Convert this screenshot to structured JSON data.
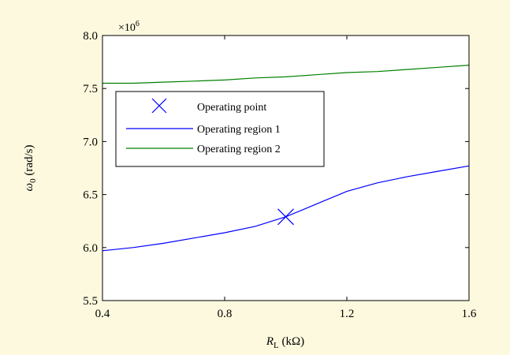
{
  "colors": {
    "page_background": "#FCF9DE",
    "plot_background": "#FFFFFF",
    "region1": "#0000FF",
    "region2": "#008000",
    "operating_point": "#0000FF",
    "axis": "#000000"
  },
  "chart_data": {
    "type": "line",
    "xlabel_var": "R",
    "xlabel_sub": "L",
    "xlabel_unit": " (kΩ)",
    "ylabel_var": "ω",
    "ylabel_sub": "0",
    "ylabel_unit": " (rad/s)",
    "y_multiplier_base": "×10",
    "y_multiplier_exp": "6",
    "xlim": [
      0.4,
      1.6
    ],
    "ylim": [
      5.5,
      8.0
    ],
    "xticks": [
      0.4,
      0.8,
      1.2,
      1.6
    ],
    "xtick_labels": [
      "0.4",
      "0.8",
      "1.2",
      "1.6"
    ],
    "yticks": [
      5.5,
      6.0,
      6.5,
      7.0,
      7.5,
      8.0
    ],
    "ytick_labels": [
      "5.5",
      "6.0",
      "6.5",
      "7.0",
      "7.5",
      "8.0"
    ],
    "grid": false,
    "legend_position": "upper-left",
    "series": [
      {
        "name": "Operating region 1",
        "color": "#0000FF",
        "x": [
          0.4,
          0.5,
          0.6,
          0.7,
          0.8,
          0.9,
          1.0,
          1.05,
          1.1,
          1.2,
          1.3,
          1.4,
          1.5,
          1.6
        ],
        "y": [
          5.97,
          6.0,
          6.04,
          6.09,
          6.14,
          6.2,
          6.29,
          6.35,
          6.41,
          6.53,
          6.61,
          6.67,
          6.72,
          6.77
        ]
      },
      {
        "name": "Operating region 2",
        "color": "#008000",
        "x": [
          0.4,
          0.5,
          0.6,
          0.7,
          0.8,
          0.9,
          1.0,
          1.1,
          1.2,
          1.3,
          1.4,
          1.5,
          1.6
        ],
        "y": [
          7.55,
          7.55,
          7.56,
          7.57,
          7.58,
          7.6,
          7.61,
          7.63,
          7.65,
          7.66,
          7.68,
          7.7,
          7.72
        ]
      }
    ],
    "markers": [
      {
        "name": "Operating point",
        "x": 1.0,
        "y": 6.29,
        "symbol": "x",
        "color": "#0000FF"
      }
    ]
  }
}
